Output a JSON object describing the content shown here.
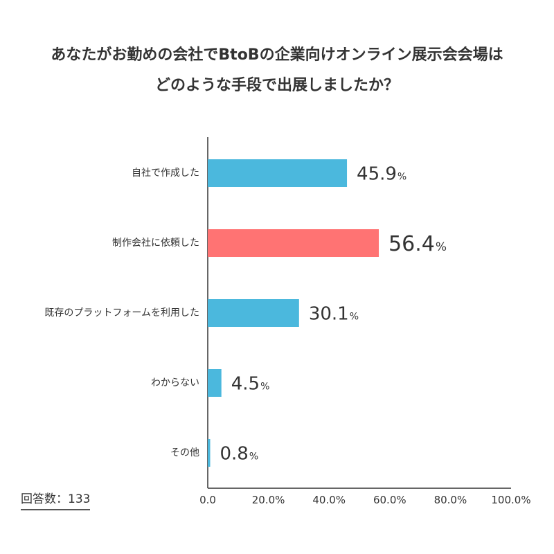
{
  "title_line1": "あなたがお勤めの会社でBtoBの企業向けオンライン展示会会場は",
  "title_line2": "どのような手段で出展しましたか？",
  "respondents_label": "回答数：133",
  "colors": {
    "default_bar": "#4bb8dd",
    "highlight_bar": "#ff7373",
    "axis": "#333333",
    "text": "#333333"
  },
  "chart_data": {
    "type": "bar",
    "orientation": "horizontal",
    "title": "あなたがお勤めの会社でBtoBの企業向けオンライン展示会会場は どのような手段で出展しましたか？",
    "categories": [
      "自社で作成した",
      "制作会社に依頼した",
      "既存のプラットフォームを利用した",
      "わからない",
      "その他"
    ],
    "values": [
      45.9,
      56.4,
      30.1,
      4.5,
      0.8
    ],
    "value_labels": [
      "45.9",
      "56.4",
      "30.1",
      "4.5",
      "0.8"
    ],
    "value_unit": "%",
    "highlight_index": 1,
    "xlim": [
      0,
      100
    ],
    "xticks": [
      "0.0",
      "20.0%",
      "40.0%",
      "60.0%",
      "80.0%",
      "100.0%"
    ],
    "xlabel": "",
    "ylabel": "",
    "grid": false
  }
}
